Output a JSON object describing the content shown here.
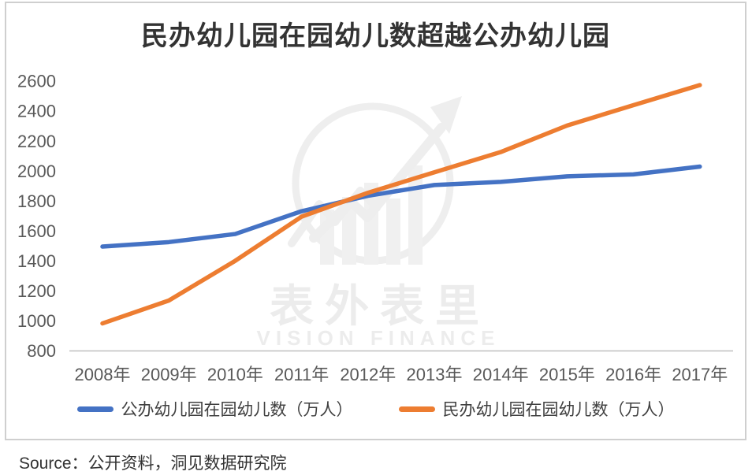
{
  "chart_card": {
    "title": "民办幼儿园在园幼儿数超越公办幼儿园"
  },
  "chart_data": {
    "type": "line",
    "title": "民办幼儿园在园幼儿数超越公办幼儿园",
    "categories": [
      "2008年",
      "2009年",
      "2010年",
      "2011年",
      "2012年",
      "2013年",
      "2014年",
      "2015年",
      "2016年",
      "2017年"
    ],
    "series": [
      {
        "name": "公办幼儿园在园幼儿数（万人）",
        "color": "#4472C4",
        "values": [
          1494,
          1524,
          1578,
          1730,
          1833,
          1905,
          1926,
          1963,
          1976,
          2028
        ]
      },
      {
        "name": "民办幼儿园在园幼儿数（万人）",
        "color": "#ED7D31",
        "values": [
          981,
          1134,
          1399,
          1694,
          1853,
          1990,
          2125,
          2302,
          2438,
          2572
        ]
      }
    ],
    "yticks": [
      800,
      1000,
      1200,
      1400,
      1600,
      1800,
      2000,
      2200,
      2400,
      2600
    ],
    "ylim": [
      800,
      2600
    ],
    "grid": false,
    "legend_position": "bottom",
    "xlabel": "",
    "ylabel": ""
  },
  "watermark": {
    "cn": "表外表里",
    "en": "VISION FINANCE"
  },
  "source": {
    "label": "Source：公开资料，洞见数据研究院"
  },
  "colors": {
    "axis_line": "#bfbfbf",
    "tick_label": "#595959",
    "title_text": "#333333",
    "watermark": "#ededed",
    "card_border": "#cfcfcf"
  }
}
